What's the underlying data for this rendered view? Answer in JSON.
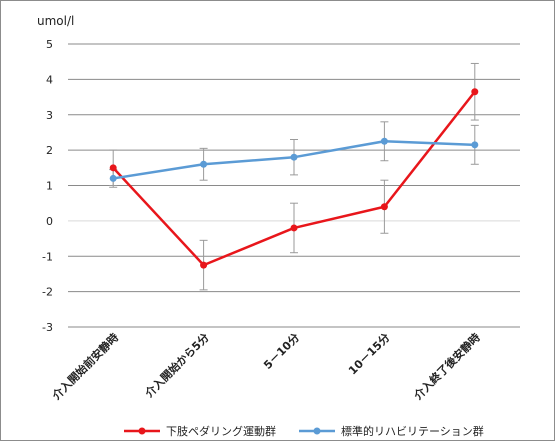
{
  "chart_data": {
    "type": "line",
    "title": "",
    "ylabel": "umol/l",
    "xlabel": "",
    "categories": [
      "介入開始前安静時",
      "介入開始から5分",
      "5－10分",
      "10－15分",
      "介入終了後安静時"
    ],
    "ylim": [
      -3,
      5
    ],
    "yticks": [
      5,
      4,
      3,
      2,
      1,
      0,
      -1,
      -2,
      -3
    ],
    "grid": true,
    "legend_position": "bottom",
    "error_bars": true,
    "series": [
      {
        "name": "下肢ペダリング運動群",
        "color": "#e8161b",
        "values": [
          1.5,
          -1.25,
          -0.2,
          0.4,
          3.65
        ],
        "error": [
          0.5,
          0.7,
          0.7,
          0.75,
          0.8
        ]
      },
      {
        "name": "標準的リハビリテーション群",
        "color": "#5b9bd5",
        "values": [
          1.2,
          1.6,
          1.8,
          2.25,
          2.15
        ],
        "error": [
          0.25,
          0.45,
          0.5,
          0.55,
          0.55
        ]
      }
    ]
  }
}
